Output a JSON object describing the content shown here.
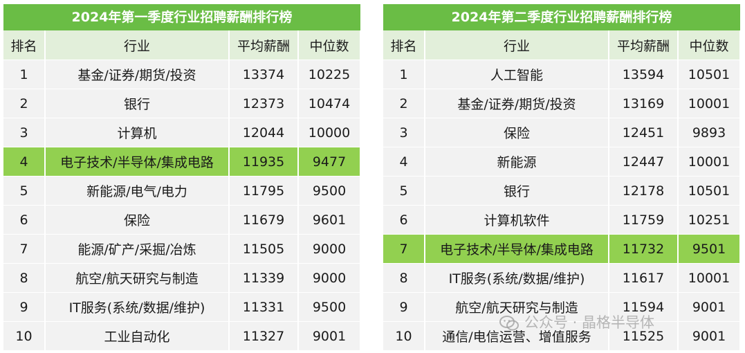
{
  "q1": {
    "title": "2024年第一季度行业招聘薪酬排行榜",
    "headers": [
      "排名",
      "行业",
      "平均薪酬",
      "中位数"
    ],
    "highlight_rank": "4",
    "rows": [
      {
        "rank": "1",
        "industry": "基金/证券/期货/投资",
        "avg": "13374",
        "median": "10225"
      },
      {
        "rank": "2",
        "industry": "银行",
        "avg": "12373",
        "median": "10474"
      },
      {
        "rank": "3",
        "industry": "计算机",
        "avg": "12044",
        "median": "10000"
      },
      {
        "rank": "4",
        "industry": "电子技术/半导体/集成电路",
        "avg": "11935",
        "median": "9477"
      },
      {
        "rank": "5",
        "industry": "新能源/电气/电力",
        "avg": "11795",
        "median": "9500"
      },
      {
        "rank": "6",
        "industry": "保险",
        "avg": "11679",
        "median": "9601"
      },
      {
        "rank": "7",
        "industry": "能源/矿产/采掘/冶炼",
        "avg": "11505",
        "median": "9000"
      },
      {
        "rank": "8",
        "industry": "航空/航天研究与制造",
        "avg": "11339",
        "median": "9000"
      },
      {
        "rank": "9",
        "industry": "IT服务(系统/数据/维护)",
        "avg": "11331",
        "median": "9500"
      },
      {
        "rank": "10",
        "industry": "工业自动化",
        "avg": "11327",
        "median": "9001"
      }
    ]
  },
  "q2": {
    "title": "2024年第二季度行业招聘薪酬排行榜",
    "headers": [
      "排名",
      "行业",
      "平均薪酬",
      "中位数"
    ],
    "highlight_rank": "7",
    "rows": [
      {
        "rank": "1",
        "industry": "人工智能",
        "avg": "13594",
        "median": "10501"
      },
      {
        "rank": "2",
        "industry": "基金/证券/期货/投资",
        "avg": "13169",
        "median": "10001"
      },
      {
        "rank": "3",
        "industry": "保险",
        "avg": "12451",
        "median": "9893"
      },
      {
        "rank": "4",
        "industry": "新能源",
        "avg": "12447",
        "median": "10001"
      },
      {
        "rank": "5",
        "industry": "银行",
        "avg": "12178",
        "median": "10501"
      },
      {
        "rank": "6",
        "industry": "计算机软件",
        "avg": "11759",
        "median": "10251"
      },
      {
        "rank": "7",
        "industry": "电子技术/半导体/集成电路",
        "avg": "11732",
        "median": "9501"
      },
      {
        "rank": "8",
        "industry": "IT服务(系统/数据/维护)",
        "avg": "11617",
        "median": "10001"
      },
      {
        "rank": "9",
        "industry": "航空/航天研究与制造",
        "avg": "11594",
        "median": "9001"
      },
      {
        "rank": "10",
        "industry": "通信/电信运营、增值服务",
        "avg": "11525",
        "median": "9001"
      }
    ]
  },
  "watermark": {
    "text": "公众号 · 晶格半导体",
    "icon": "wechat-icon"
  },
  "colors": {
    "title_bg": "#6abd45",
    "header_bg": "#e2efda",
    "row_bg": "#f2f2f2",
    "highlight_bg": "#92d050"
  }
}
